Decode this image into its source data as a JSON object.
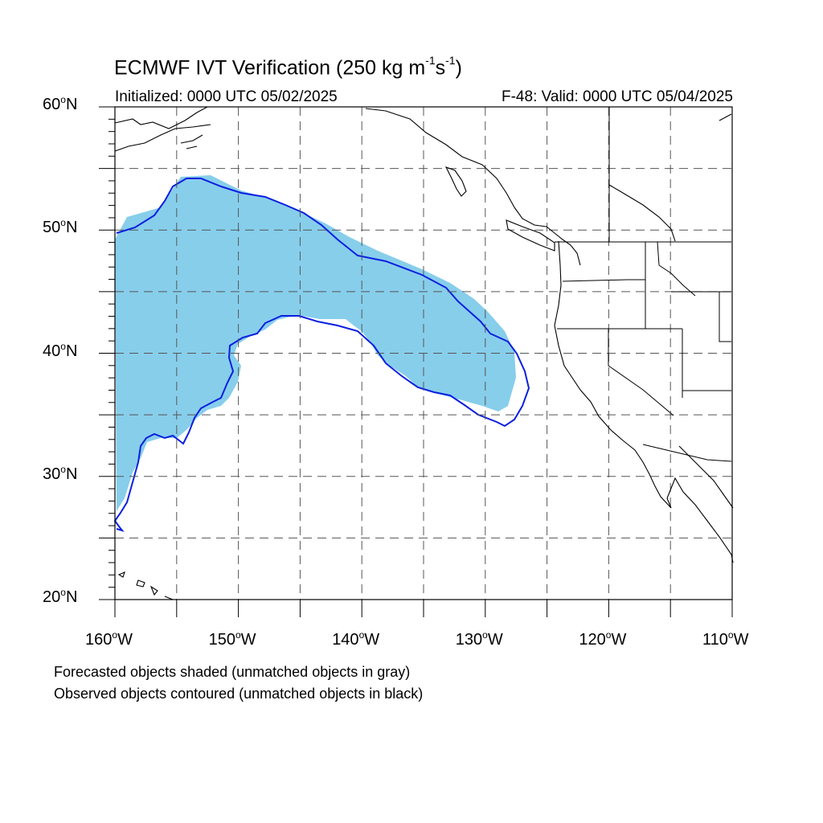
{
  "header": {
    "title_prefix": "ECMWF IVT Verification (250 kg m",
    "title_exp1": "-1",
    "title_mid": "s",
    "title_exp2": "-1",
    "title_suffix": ")",
    "initialized": "Initialized: 0000 UTC 05/02/2025",
    "valid": "F-48: Valid: 0000 UTC 05/04/2025"
  },
  "axes": {
    "lat_labels": [
      {
        "deg": "60",
        "hemi": "N"
      },
      {
        "deg": "50",
        "hemi": "N"
      },
      {
        "deg": "40",
        "hemi": "N"
      },
      {
        "deg": "30",
        "hemi": "N"
      },
      {
        "deg": "20",
        "hemi": "N"
      }
    ],
    "lon_labels": [
      {
        "deg": "160",
        "hemi": "W"
      },
      {
        "deg": "150",
        "hemi": "W"
      },
      {
        "deg": "140",
        "hemi": "W"
      },
      {
        "deg": "130",
        "hemi": "W"
      },
      {
        "deg": "120",
        "hemi": "W"
      },
      {
        "deg": "110",
        "hemi": "W"
      }
    ],
    "lon_range": [
      -160,
      -110
    ],
    "lat_range": [
      20,
      60
    ],
    "grid_spacing_deg": 5,
    "grid": "dashed"
  },
  "legend": {
    "line1": "Forecasted objects shaded (unmatched objects in gray)",
    "line2": "Observed objects contoured (unmatched objects in black)"
  },
  "colors": {
    "forecast_fill": "#87ceeb",
    "observed_contour": "#0a1fe0",
    "coastline": "#000000",
    "grid": "#555555"
  }
}
